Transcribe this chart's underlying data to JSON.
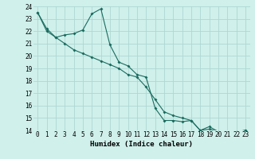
{
  "xlabel": "Humidex (Indice chaleur)",
  "bg_color": "#cff0eb",
  "grid_color": "#aed8d2",
  "line_color": "#1a6b5e",
  "xlim": [
    -0.5,
    23.5
  ],
  "ylim": [
    14,
    24
  ],
  "xticks": [
    0,
    1,
    2,
    3,
    4,
    5,
    6,
    7,
    8,
    9,
    10,
    11,
    12,
    13,
    14,
    15,
    16,
    17,
    18,
    19,
    20,
    21,
    22,
    23
  ],
  "yticks": [
    14,
    15,
    16,
    17,
    18,
    19,
    20,
    21,
    22,
    23,
    24
  ],
  "line1_x": [
    0,
    1,
    2,
    3,
    4,
    5,
    6,
    7,
    8,
    9,
    10,
    11,
    12,
    13,
    14,
    15,
    16,
    17,
    18,
    19,
    20,
    21,
    22,
    23
  ],
  "line1_y": [
    23.5,
    22.2,
    21.5,
    21.7,
    21.8,
    22.1,
    23.4,
    23.8,
    20.9,
    19.5,
    19.2,
    18.5,
    18.3,
    15.8,
    14.8,
    14.8,
    14.7,
    14.8,
    14.0,
    14.3,
    13.9,
    13.8,
    13.9,
    14.0
  ],
  "line2_x": [
    0,
    1,
    2,
    3,
    4,
    5,
    6,
    7,
    8,
    9,
    10,
    11,
    12,
    13,
    14,
    15,
    16,
    17,
    18,
    19,
    20,
    21,
    22,
    23
  ],
  "line2_y": [
    23.5,
    22.0,
    21.5,
    21.0,
    20.5,
    20.2,
    19.9,
    19.6,
    19.3,
    19.0,
    18.5,
    18.3,
    17.5,
    16.5,
    15.5,
    15.2,
    15.0,
    14.8,
    14.0,
    14.1,
    13.9,
    13.8,
    13.9,
    14.0
  ],
  "xlabel_fontsize": 6.5,
  "tick_fontsize": 5.5
}
